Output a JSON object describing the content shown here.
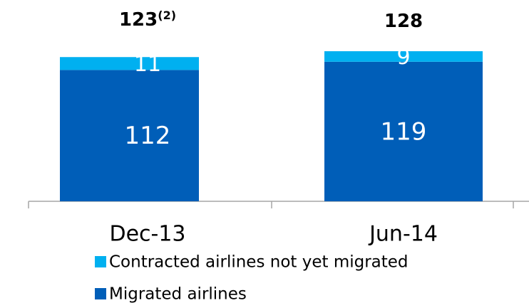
{
  "chart_data": {
    "type": "stacked_bar",
    "categories": [
      "Dec-13",
      "Jun-14"
    ],
    "series": [
      {
        "name": "Contracted airlines not yet migrated",
        "color": "#00b0f0",
        "values": [
          11,
          9
        ]
      },
      {
        "name": "Migrated airlines",
        "color": "#005eb8",
        "values": [
          112,
          119
        ]
      }
    ],
    "totals": [
      123,
      128
    ],
    "total_notes": [
      "(2)",
      null
    ]
  }
}
